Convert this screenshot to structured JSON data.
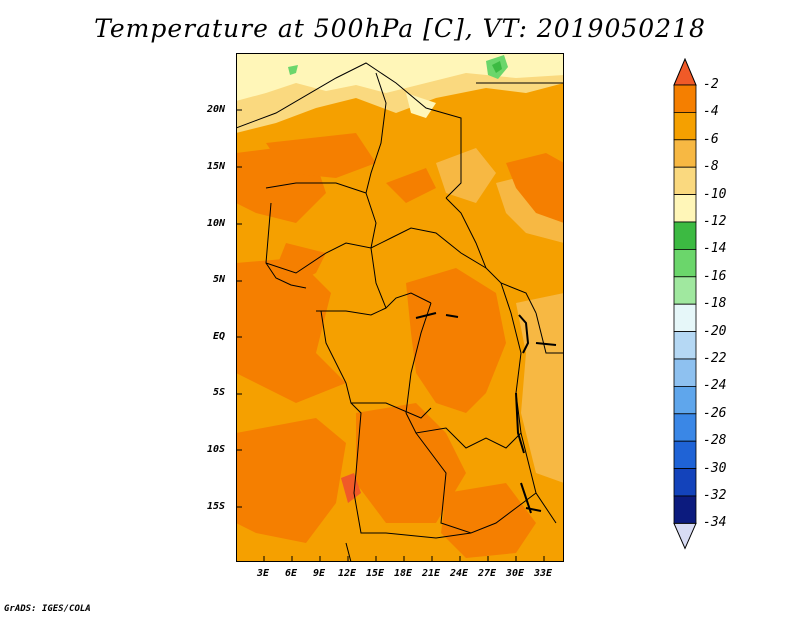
{
  "title": "Temperature at 500hPa [C], VT: 2019050218",
  "credit": "GrADS: IGES/COLA",
  "axes": {
    "lat_labels": [
      "20N",
      "15N",
      "10N",
      "5N",
      "EQ",
      "5S",
      "10S",
      "15S"
    ],
    "lon_labels": [
      "3E",
      "6E",
      "9E",
      "12E",
      "15E",
      "18E",
      "21E",
      "24E",
      "27E",
      "30E",
      "33E"
    ]
  },
  "colorbar": {
    "labels": [
      "-2",
      "-4",
      "-6",
      "-8",
      "-10",
      "-12",
      "-14",
      "-16",
      "-18",
      "-20",
      "-22",
      "-24",
      "-26",
      "-28",
      "-30",
      "-32",
      "-34"
    ],
    "colors": [
      "#f05a28",
      "#f57f00",
      "#f5a000",
      "#f7b843",
      "#fad97f",
      "#fff6b8",
      "#3cba42",
      "#6bd66b",
      "#a0e89f",
      "#e6f7f9",
      "#b5d8f4",
      "#8ec1f0",
      "#5fa6ec",
      "#3a87e6",
      "#1f63d6",
      "#1343bb",
      "#0c1b7e",
      "#d8dcf4"
    ]
  }
}
